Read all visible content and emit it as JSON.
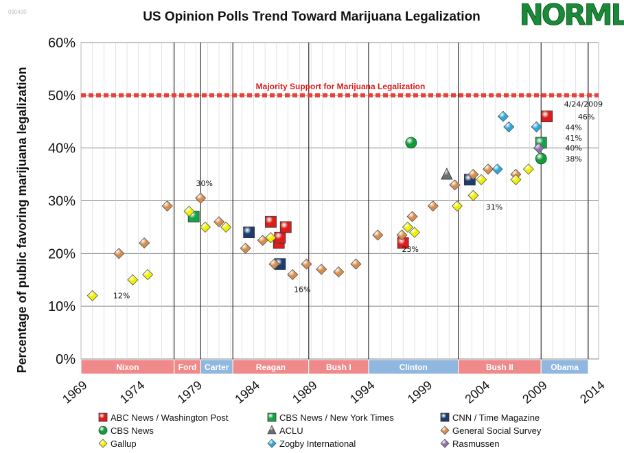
{
  "stamp": "090430",
  "logo_text": "NORML",
  "chart_data": {
    "type": "scatter",
    "title": "US Opinion Polls Trend Toward Marijuana Legalization",
    "ylabel": "Percentage of public favoring marijuana legalization",
    "xlabel": "",
    "xlim": [
      1969,
      2014
    ],
    "ylim": [
      0,
      60
    ],
    "x_ticks": [
      "1969",
      "1974",
      "1979",
      "1984",
      "1989",
      "1994",
      "1999",
      "2004",
      "2009",
      "2014"
    ],
    "y_ticks": [
      "0%",
      "10%",
      "20%",
      "30%",
      "40%",
      "50%",
      "60%"
    ],
    "grid": true,
    "majority_line": {
      "value": 50,
      "label": "Majority Support for Marijuana Legalization"
    },
    "presidencies": [
      {
        "name": "Nixon",
        "start": 1969,
        "end": 1977.1,
        "color": "#f08a8a"
      },
      {
        "name": "Ford",
        "start": 1977.1,
        "end": 1979.4,
        "color": "#f08a8a"
      },
      {
        "name": "Carter",
        "start": 1979.4,
        "end": 1982.2,
        "color": "#8fb7df"
      },
      {
        "name": "Reagan",
        "start": 1982.2,
        "end": 1988.8,
        "color": "#f08a8a"
      },
      {
        "name": "Bush I",
        "start": 1988.8,
        "end": 1994.0,
        "color": "#f08a8a"
      },
      {
        "name": "Clinton",
        "start": 1994.0,
        "end": 2001.8,
        "color": "#8fb7df"
      },
      {
        "name": "Bush II",
        "start": 2001.8,
        "end": 2009.0,
        "color": "#f08a8a"
      },
      {
        "name": "Obama",
        "start": 2009.0,
        "end": 2013.1,
        "color": "#8fb7df"
      }
    ],
    "series": [
      {
        "name": "ABC News / Washington Post",
        "shape": "square",
        "color": "#dd1c1c",
        "points": [
          [
            1985.5,
            26
          ],
          [
            1986.2,
            22
          ],
          [
            1986.3,
            23
          ],
          [
            1986.8,
            25
          ],
          [
            1997.0,
            22
          ],
          [
            2009.5,
            46
          ]
        ]
      },
      {
        "name": "CBS News / New York Times",
        "shape": "square",
        "color": "#16a24a",
        "points": [
          [
            1978.8,
            27
          ],
          [
            2009.0,
            41
          ]
        ]
      },
      {
        "name": "CNN / Time Magazine",
        "shape": "square",
        "color": "#1d3c6e",
        "points": [
          [
            1983.6,
            24
          ],
          [
            1986.3,
            18
          ],
          [
            2002.8,
            34
          ]
        ]
      },
      {
        "name": "CBS News",
        "shape": "circle",
        "color": "#149a3a",
        "points": [
          [
            1997.7,
            41
          ],
          [
            2009.0,
            38
          ]
        ]
      },
      {
        "name": "ACLU",
        "shape": "triangle",
        "color": "#6e6e6e",
        "points": [
          [
            2000.8,
            35
          ]
        ]
      },
      {
        "name": "General Social Survey",
        "shape": "diamond",
        "color": "#d98d4a",
        "points": [
          [
            1972.3,
            20
          ],
          [
            1974.5,
            22
          ],
          [
            1976.5,
            29
          ],
          [
            1979.4,
            30.5
          ],
          [
            1981.0,
            26
          ],
          [
            1983.3,
            21
          ],
          [
            1984.8,
            22.5
          ],
          [
            1985.8,
            18
          ],
          [
            1987.4,
            16
          ],
          [
            1988.6,
            18
          ],
          [
            1989.9,
            17
          ],
          [
            1991.4,
            16.5
          ],
          [
            1992.9,
            18
          ],
          [
            1994.8,
            23.5
          ],
          [
            1996.9,
            23.5
          ],
          [
            1997.8,
            27
          ],
          [
            1999.6,
            29
          ],
          [
            2001.5,
            33
          ],
          [
            2003.1,
            35
          ],
          [
            2004.4,
            36
          ],
          [
            2006.8,
            35
          ]
        ]
      },
      {
        "name": "Gallup",
        "shape": "diamond",
        "color": "#f0f000",
        "points": [
          [
            1970.0,
            12
          ],
          [
            1973.5,
            15
          ],
          [
            1974.8,
            16
          ],
          [
            1978.4,
            28
          ],
          [
            1979.8,
            25
          ],
          [
            1981.6,
            25
          ],
          [
            1985.5,
            23
          ],
          [
            1997.4,
            25
          ],
          [
            1998.0,
            24
          ],
          [
            2001.7,
            29
          ],
          [
            2003.1,
            31
          ],
          [
            2003.8,
            34
          ],
          [
            2006.8,
            34
          ],
          [
            2007.9,
            36
          ]
        ]
      },
      {
        "name": "Zogby International",
        "shape": "diamond",
        "color": "#2aa9e0",
        "points": [
          [
            2005.2,
            36
          ],
          [
            2005.7,
            46
          ],
          [
            2006.2,
            44
          ],
          [
            2008.6,
            44
          ]
        ]
      },
      {
        "name": "Rasmussen",
        "shape": "diamond",
        "color": "#8b6fb0",
        "points": [
          [
            2008.8,
            40
          ]
        ]
      }
    ],
    "annotations": [
      {
        "text": "12%",
        "x": 1971.8,
        "y": 11.5
      },
      {
        "text": "30%",
        "x": 1979.0,
        "y": 32.8
      },
      {
        "text": "16%",
        "x": 1987.5,
        "y": 12.7
      },
      {
        "text": "23%",
        "x": 1996.9,
        "y": 20.3
      },
      {
        "text": "31%",
        "x": 2004.2,
        "y": 28.3
      },
      {
        "text": "4/24/2009",
        "x": 2011.0,
        "y": 47.8
      },
      {
        "text": "46%",
        "x": 2012.2,
        "y": 45.4
      },
      {
        "text": "44%",
        "x": 2011.1,
        "y": 43.4
      },
      {
        "text": "41%",
        "x": 2011.1,
        "y": 41.4
      },
      {
        "text": "40%",
        "x": 2011.1,
        "y": 39.5
      },
      {
        "text": "38%",
        "x": 2011.1,
        "y": 37.4
      }
    ]
  }
}
